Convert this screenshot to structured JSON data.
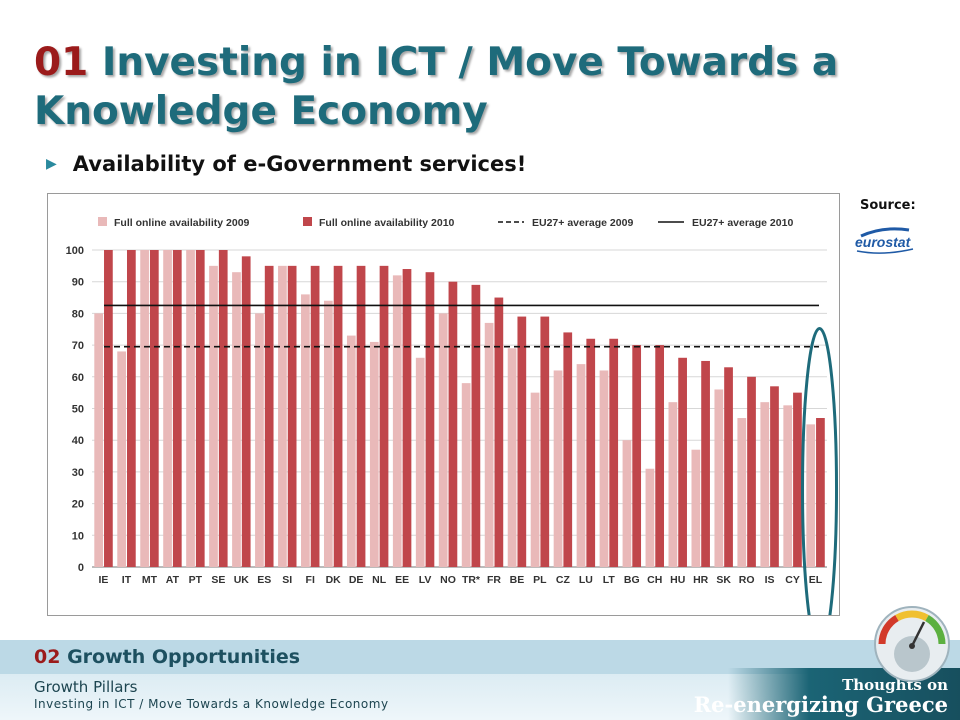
{
  "slide": {
    "title_num": "01",
    "title_text": "Investing in ICT / Move Towards a Knowledge Economy",
    "bullet": "Availability of e-Government services!",
    "source_label": "Source:",
    "source_logo": "eurostat"
  },
  "footer": {
    "section_num": "02",
    "section_title": "Growth Opportunities",
    "sub1": "Growth Pillars",
    "sub2": "Investing in ICT / Move Towards a Knowledge Economy",
    "logo_line1": "Thoughts on",
    "logo_line2": "Re-energizing Greece"
  },
  "colors": {
    "series_2009": "#e9b9b9",
    "series_2010": "#c0464b",
    "title": "#1e6b7b",
    "title_num": "#9b1b1b",
    "highlight_ellipse": "#1e6b7b"
  },
  "chart_data": {
    "type": "bar",
    "categories": [
      "IE",
      "IT",
      "MT",
      "AT",
      "PT",
      "SE",
      "UK",
      "ES",
      "SI",
      "FI",
      "DK",
      "DE",
      "NL",
      "EE",
      "LV",
      "NO",
      "TR*",
      "FR",
      "BE",
      "PL",
      "CZ",
      "LU",
      "LT",
      "BG",
      "CH",
      "HU",
      "HR",
      "SK",
      "RO",
      "IS",
      "CY",
      "EL"
    ],
    "series": [
      {
        "name": "Full online availability 2009",
        "color": "#e9b9b9",
        "values": [
          80,
          68,
          100,
          100,
          100,
          95,
          93,
          80,
          95,
          86,
          84,
          73,
          71,
          92,
          66,
          80,
          58,
          77,
          69,
          55,
          62,
          64,
          62,
          40,
          31,
          52,
          37,
          56,
          47,
          52,
          51,
          45
        ]
      },
      {
        "name": "Full online availability 2010",
        "color": "#c0464b",
        "values": [
          100,
          100,
          100,
          100,
          100,
          100,
          98,
          95,
          95,
          95,
          95,
          95,
          95,
          94,
          93,
          90,
          89,
          85,
          79,
          79,
          74,
          72,
          72,
          70,
          70,
          66,
          65,
          63,
          60,
          57,
          55,
          47
        ]
      }
    ],
    "lines": [
      {
        "name": "EU27+ average 2009",
        "value": 69.5,
        "style": "dashed"
      },
      {
        "name": "EU27+ average 2010",
        "value": 82.5,
        "style": "solid"
      }
    ],
    "ylim": [
      0,
      100
    ],
    "yticks": [
      0,
      10,
      20,
      30,
      40,
      50,
      60,
      70,
      80,
      90,
      100
    ],
    "grid": true,
    "legend_position": "top",
    "highlight": "EL"
  }
}
